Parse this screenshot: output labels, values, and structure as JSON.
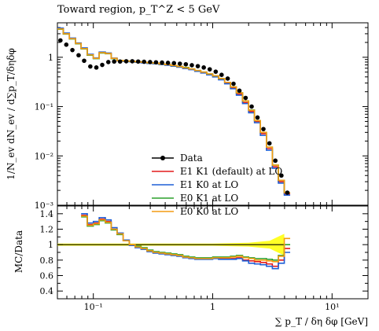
{
  "chart_data": [
    {
      "type": "line",
      "panel": "main",
      "title": "Toward region, p_T^Z < 5 GeV",
      "xlabel": "∑ p_T / δη δφ [GeV]",
      "ylabel": "1/N_ev dN_ev / d∑p_T/δηδφ",
      "xscale": "log",
      "yscale": "log",
      "xlim": [
        0.05,
        20
      ],
      "ylim": [
        0.001,
        5
      ],
      "x_ticks": [
        "10⁻¹",
        "1",
        "10¹"
      ],
      "y_ticks": [
        "10⁻³",
        "10⁻²",
        "10⁻¹",
        "1"
      ],
      "legend_position": "lower-left",
      "series": [
        {
          "name": "Data",
          "color": "#000000",
          "style": "points",
          "x": [
            0.05,
            0.056,
            0.063,
            0.071,
            0.079,
            0.089,
            0.1,
            0.112,
            0.126,
            0.141,
            0.158,
            0.178,
            0.2,
            0.224,
            0.251,
            0.282,
            0.316,
            0.355,
            0.398,
            0.447,
            0.501,
            0.562,
            0.631,
            0.708,
            0.794,
            0.891,
            1.0,
            1.12,
            1.26,
            1.41,
            1.58,
            1.78,
            2.0,
            2.24,
            2.51,
            2.82,
            3.16,
            3.55,
            3.98
          ],
          "values": [
            2.2,
            1.8,
            1.4,
            1.1,
            0.85,
            0.65,
            0.62,
            0.7,
            0.8,
            0.82,
            0.82,
            0.83,
            0.83,
            0.82,
            0.81,
            0.8,
            0.79,
            0.78,
            0.77,
            0.76,
            0.74,
            0.72,
            0.69,
            0.66,
            0.62,
            0.57,
            0.51,
            0.44,
            0.37,
            0.29,
            0.21,
            0.15,
            0.1,
            0.06,
            0.035,
            0.018,
            0.008,
            0.004,
            0.0018
          ]
        },
        {
          "name": "E1 K1 (default) at LO",
          "color": "#e41a1c",
          "style": "step",
          "x": [
            0.05,
            0.056,
            0.063,
            0.071,
            0.079,
            0.089,
            0.1,
            0.112,
            0.126,
            0.141,
            0.158,
            0.178,
            0.2,
            0.224,
            0.251,
            0.282,
            0.316,
            0.355,
            0.398,
            0.447,
            0.501,
            0.562,
            0.631,
            0.708,
            0.794,
            0.891,
            1.0,
            1.12,
            1.26,
            1.41,
            1.58,
            1.78,
            2.0,
            2.24,
            2.51,
            2.82,
            3.16,
            3.55,
            3.98
          ],
          "values": [
            3.8,
            3.0,
            2.4,
            1.9,
            1.5,
            1.1,
            0.95,
            1.25,
            1.2,
            0.95,
            0.85,
            0.83,
            0.82,
            0.8,
            0.78,
            0.76,
            0.75,
            0.72,
            0.7,
            0.67,
            0.64,
            0.6,
            0.57,
            0.53,
            0.49,
            0.45,
            0.41,
            0.36,
            0.3,
            0.24,
            0.18,
            0.12,
            0.08,
            0.05,
            0.028,
            0.014,
            0.006,
            0.003,
            0.0017
          ]
        },
        {
          "name": "E1 K0 at LO",
          "color": "#1f5fd6",
          "style": "step",
          "x": [
            0.05,
            0.056,
            0.063,
            0.071,
            0.079,
            0.089,
            0.1,
            0.112,
            0.126,
            0.141,
            0.158,
            0.178,
            0.2,
            0.224,
            0.251,
            0.282,
            0.316,
            0.355,
            0.398,
            0.447,
            0.501,
            0.562,
            0.631,
            0.708,
            0.794,
            0.891,
            1.0,
            1.12,
            1.26,
            1.41,
            1.58,
            1.78,
            2.0,
            2.24,
            2.51,
            2.82,
            3.16,
            3.55,
            3.98
          ],
          "values": [
            3.9,
            3.1,
            2.45,
            1.95,
            1.55,
            1.15,
            0.97,
            1.28,
            1.22,
            0.96,
            0.85,
            0.82,
            0.81,
            0.79,
            0.77,
            0.75,
            0.74,
            0.71,
            0.69,
            0.66,
            0.63,
            0.59,
            0.56,
            0.52,
            0.48,
            0.44,
            0.4,
            0.35,
            0.29,
            0.23,
            0.17,
            0.115,
            0.075,
            0.047,
            0.026,
            0.013,
            0.0056,
            0.0028,
            0.0016
          ]
        },
        {
          "name": "E0 K1 at LO",
          "color": "#2ca02c",
          "style": "step",
          "x": [
            0.05,
            0.056,
            0.063,
            0.071,
            0.079,
            0.089,
            0.1,
            0.112,
            0.126,
            0.141,
            0.158,
            0.178,
            0.2,
            0.224,
            0.251,
            0.282,
            0.316,
            0.355,
            0.398,
            0.447,
            0.501,
            0.562,
            0.631,
            0.708,
            0.794,
            0.891,
            1.0,
            1.12,
            1.26,
            1.41,
            1.58,
            1.78,
            2.0,
            2.24,
            2.51,
            2.82,
            3.16,
            3.55,
            3.98
          ],
          "values": [
            3.7,
            2.95,
            2.35,
            1.88,
            1.48,
            1.1,
            0.94,
            1.22,
            1.18,
            0.94,
            0.86,
            0.84,
            0.83,
            0.81,
            0.79,
            0.77,
            0.76,
            0.73,
            0.71,
            0.68,
            0.65,
            0.62,
            0.58,
            0.54,
            0.5,
            0.46,
            0.42,
            0.37,
            0.31,
            0.25,
            0.19,
            0.13,
            0.085,
            0.052,
            0.03,
            0.015,
            0.0065,
            0.0032,
            0.0018
          ]
        },
        {
          "name": "E0 K0 at LO",
          "color": "#f39c12",
          "style": "step",
          "x": [
            0.05,
            0.056,
            0.063,
            0.071,
            0.079,
            0.089,
            0.1,
            0.112,
            0.126,
            0.141,
            0.158,
            0.178,
            0.2,
            0.224,
            0.251,
            0.282,
            0.316,
            0.355,
            0.398,
            0.447,
            0.501,
            0.562,
            0.631,
            0.708,
            0.794,
            0.891,
            1.0,
            1.12,
            1.26,
            1.41,
            1.58,
            1.78,
            2.0,
            2.24,
            2.51,
            2.82,
            3.16,
            3.55,
            3.98
          ],
          "values": [
            3.75,
            3.0,
            2.38,
            1.9,
            1.5,
            1.12,
            0.95,
            1.24,
            1.19,
            0.95,
            0.86,
            0.84,
            0.83,
            0.81,
            0.79,
            0.77,
            0.76,
            0.73,
            0.71,
            0.68,
            0.65,
            0.61,
            0.58,
            0.54,
            0.5,
            0.46,
            0.42,
            0.37,
            0.31,
            0.25,
            0.19,
            0.13,
            0.084,
            0.052,
            0.03,
            0.015,
            0.0065,
            0.0032,
            0.0018
          ]
        }
      ]
    },
    {
      "type": "line",
      "panel": "ratio",
      "xlabel": "∑ p_T / δη δφ [GeV]",
      "ylabel": "MC/Data",
      "xscale": "log",
      "yscale": "linear",
      "xlim": [
        0.05,
        20
      ],
      "ylim": [
        0.3,
        1.5
      ],
      "x_ticks": [
        "10⁻¹",
        "1",
        "10¹"
      ],
      "y_ticks": [
        "0.4",
        "0.6",
        "0.8",
        "1",
        "1.2",
        "1.4"
      ],
      "band": {
        "color": "#ffff00",
        "x": [
          0.05,
          0.1,
          0.3,
          1.0,
          2.0,
          3.0,
          3.5,
          3.98
        ],
        "lower": [
          0.985,
          0.985,
          0.985,
          0.985,
          0.975,
          0.95,
          0.9,
          0.86
        ],
        "upper": [
          1.015,
          1.015,
          1.015,
          1.015,
          1.025,
          1.05,
          1.1,
          1.14
        ]
      },
      "series": [
        {
          "name": "E1 K1 (default) at LO",
          "color": "#e41a1c",
          "x": [
            0.079,
            0.089,
            0.1,
            0.112,
            0.126,
            0.141,
            0.158,
            0.178,
            0.2,
            0.224,
            0.251,
            0.282,
            0.316,
            0.355,
            0.398,
            0.447,
            0.501,
            0.562,
            0.631,
            0.708,
            0.794,
            0.891,
            1.0,
            1.12,
            1.26,
            1.41,
            1.58,
            1.78,
            2.0,
            2.24,
            2.51,
            2.82,
            3.16,
            3.55,
            3.98
          ],
          "values": [
            1.38,
            1.26,
            1.28,
            1.33,
            1.3,
            1.2,
            1.14,
            1.05,
            1.0,
            0.97,
            0.95,
            0.92,
            0.9,
            0.89,
            0.88,
            0.87,
            0.86,
            0.84,
            0.83,
            0.82,
            0.82,
            0.82,
            0.83,
            0.82,
            0.82,
            0.82,
            0.83,
            0.8,
            0.79,
            0.78,
            0.77,
            0.75,
            0.72,
            0.8,
            0.95
          ]
        },
        {
          "name": "E1 K0 at LO",
          "color": "#1f5fd6",
          "x": [
            0.079,
            0.089,
            0.1,
            0.112,
            0.126,
            0.141,
            0.158,
            0.178,
            0.2,
            0.224,
            0.251,
            0.282,
            0.316,
            0.355,
            0.398,
            0.447,
            0.501,
            0.562,
            0.631,
            0.708,
            0.794,
            0.891,
            1.0,
            1.12,
            1.26,
            1.41,
            1.58,
            1.78,
            2.0,
            2.24,
            2.51,
            2.82,
            3.16,
            3.55,
            3.98
          ],
          "values": [
            1.4,
            1.28,
            1.3,
            1.35,
            1.32,
            1.22,
            1.15,
            1.06,
            0.99,
            0.96,
            0.94,
            0.91,
            0.89,
            0.88,
            0.87,
            0.86,
            0.85,
            0.83,
            0.82,
            0.81,
            0.81,
            0.81,
            0.82,
            0.81,
            0.81,
            0.81,
            0.82,
            0.79,
            0.76,
            0.75,
            0.74,
            0.72,
            0.69,
            0.76,
            0.9
          ]
        },
        {
          "name": "E0 K1 at LO",
          "color": "#2ca02c",
          "x": [
            0.079,
            0.089,
            0.1,
            0.112,
            0.126,
            0.141,
            0.158,
            0.178,
            0.2,
            0.224,
            0.251,
            0.282,
            0.316,
            0.355,
            0.398,
            0.447,
            0.501,
            0.562,
            0.631,
            0.708,
            0.794,
            0.891,
            1.0,
            1.12,
            1.26,
            1.41,
            1.58,
            1.78,
            2.0,
            2.24,
            2.51,
            2.82,
            3.16,
            3.55,
            3.98
          ],
          "values": [
            1.36,
            1.24,
            1.26,
            1.31,
            1.28,
            1.19,
            1.13,
            1.05,
            1.0,
            0.98,
            0.96,
            0.93,
            0.91,
            0.9,
            0.89,
            0.88,
            0.87,
            0.85,
            0.84,
            0.83,
            0.83,
            0.83,
            0.84,
            0.84,
            0.84,
            0.85,
            0.86,
            0.84,
            0.83,
            0.82,
            0.82,
            0.81,
            0.8,
            0.86,
            1.0
          ]
        },
        {
          "name": "E0 K0 at LO",
          "color": "#f39c12",
          "x": [
            0.079,
            0.089,
            0.1,
            0.112,
            0.126,
            0.141,
            0.158,
            0.178,
            0.2,
            0.224,
            0.251,
            0.282,
            0.316,
            0.355,
            0.398,
            0.447,
            0.501,
            0.562,
            0.631,
            0.708,
            0.794,
            0.891,
            1.0,
            1.12,
            1.26,
            1.41,
            1.58,
            1.78,
            2.0,
            2.24,
            2.51,
            2.82,
            3.16,
            3.55,
            3.98
          ],
          "values": [
            1.37,
            1.25,
            1.27,
            1.32,
            1.29,
            1.2,
            1.14,
            1.05,
            1.0,
            0.97,
            0.95,
            0.92,
            0.9,
            0.89,
            0.88,
            0.87,
            0.86,
            0.84,
            0.83,
            0.82,
            0.82,
            0.82,
            0.83,
            0.83,
            0.83,
            0.84,
            0.85,
            0.83,
            0.82,
            0.8,
            0.8,
            0.79,
            0.78,
            0.85,
            1.08
          ]
        }
      ]
    }
  ]
}
